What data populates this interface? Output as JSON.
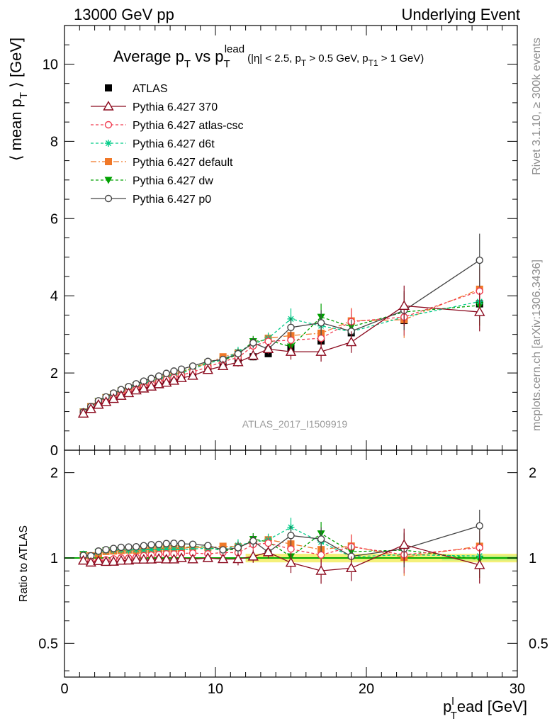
{
  "header": {
    "left": "13000 GeV pp",
    "right": "Underlying Event"
  },
  "side_labels": {
    "rivet": "Rivet 3.1.10, ≥ 300k events",
    "mcplots": "mcplots.cern.ch [arXiv:1306.3436]"
  },
  "watermark": "ATLAS_2017_I1509919",
  "colors": {
    "ATLAS": "#000000",
    "p370": "#8b0a1e",
    "atlascsc": "#f03c50",
    "d6t": "#00cc88",
    "default": "#f07828",
    "dw": "#00a000",
    "p0": "#444444",
    "band": "#f5f07a",
    "band_inner": "#c8f07a",
    "ratio_line": "#00aa00"
  },
  "chart_data": {
    "type": "line",
    "title": {
      "lead": "Average p",
      "sub1": "T",
      "mid": " vs p",
      "sub2": "T",
      "sup2": "lead",
      "cut": "(|η| < 2.5, p",
      "cut_sub1": "T",
      "cut2": " > 0.5 GeV, p",
      "cut_sub2": "T1",
      "cut3": " > 1 GeV)"
    },
    "ylabel": {
      "main": "⟨ mean p",
      "sub": "T",
      "tail": " ⟩ [GeV]"
    },
    "ratio_ylabel": "Ratio to ATLAS",
    "xlabel": {
      "main": "p",
      "sup": "l",
      "sub": "T",
      "tail": "ead [GeV]"
    },
    "xlim": [
      0,
      30
    ],
    "ylim": [
      0,
      11
    ],
    "ratio_ylim": [
      0.38,
      2.4
    ],
    "x_ticks": [
      "0",
      "10",
      "20",
      "30"
    ],
    "y_ticks": [
      "0",
      "2",
      "4",
      "6",
      "8",
      "10"
    ],
    "ratio_ticks": [
      "0.5",
      "1",
      "2"
    ],
    "x": [
      1.25,
      1.75,
      2.25,
      2.75,
      3.25,
      3.75,
      4.25,
      4.75,
      5.25,
      5.75,
      6.25,
      6.75,
      7.25,
      7.75,
      8.5,
      9.5,
      10.5,
      11.5,
      12.5,
      13.5,
      15,
      17,
      19,
      22.5,
      27.5
    ],
    "series": [
      {
        "name": "ATLAS",
        "key": "ATLAS",
        "marker": "square-filled",
        "dash": "none",
        "values": [
          0.97,
          1.11,
          1.21,
          1.29,
          1.37,
          1.44,
          1.51,
          1.57,
          1.62,
          1.67,
          1.72,
          1.77,
          1.82,
          1.87,
          1.95,
          2.08,
          2.2,
          2.3,
          2.42,
          2.5,
          2.65,
          2.83,
          3.04,
          3.36,
          3.79
        ]
      },
      {
        "name": "Pythia 6.427 370",
        "key": "p370",
        "marker": "triangle-open",
        "dash": "none",
        "values": [
          0.95,
          1.07,
          1.18,
          1.25,
          1.33,
          1.41,
          1.48,
          1.55,
          1.6,
          1.65,
          1.71,
          1.75,
          1.8,
          1.87,
          1.93,
          2.08,
          2.18,
          2.28,
          2.45,
          2.62,
          2.55,
          2.55,
          2.8,
          3.74,
          3.58
        ]
      },
      {
        "name": "Pythia 6.427 atlas-csc",
        "key": "atlascsc",
        "marker": "circle-open",
        "dash": "4,3",
        "values": [
          0.98,
          1.08,
          1.18,
          1.27,
          1.36,
          1.44,
          1.51,
          1.58,
          1.65,
          1.71,
          1.77,
          1.83,
          1.88,
          1.94,
          2.03,
          2.15,
          2.3,
          2.4,
          2.7,
          2.82,
          2.85,
          2.9,
          3.33,
          3.45,
          4.12
        ]
      },
      {
        "name": "Pythia 6.427 d6t",
        "key": "d6t",
        "marker": "star",
        "dash": "4,3",
        "values": [
          1.0,
          1.12,
          1.27,
          1.37,
          1.46,
          1.54,
          1.61,
          1.68,
          1.73,
          1.79,
          1.84,
          1.9,
          1.95,
          2.0,
          2.1,
          2.25,
          2.35,
          2.55,
          2.75,
          2.9,
          3.4,
          3.22,
          3.07,
          3.45,
          3.85
        ]
      },
      {
        "name": "Pythia 6.427 default",
        "key": "default",
        "marker": "square-filled",
        "dash": "8,3,2,3",
        "values": [
          0.99,
          1.13,
          1.25,
          1.36,
          1.45,
          1.53,
          1.61,
          1.67,
          1.73,
          1.79,
          1.85,
          1.91,
          1.96,
          2.02,
          2.13,
          2.26,
          2.42,
          2.52,
          2.75,
          2.9,
          2.97,
          3.03,
          3.35,
          3.38,
          4.17
        ]
      },
      {
        "name": "Pythia 6.427 dw",
        "key": "dw",
        "marker": "triangle-down-filled",
        "dash": "4,3",
        "values": [
          1.0,
          1.13,
          1.27,
          1.37,
          1.46,
          1.54,
          1.61,
          1.68,
          1.74,
          1.8,
          1.86,
          1.92,
          1.97,
          2.03,
          2.14,
          2.27,
          2.33,
          2.48,
          2.82,
          2.85,
          2.68,
          3.45,
          3.2,
          3.58,
          3.75
        ]
      },
      {
        "name": "Pythia 6.427 p0",
        "key": "p0",
        "marker": "circle-open",
        "dash": "none",
        "values": [
          0.99,
          1.13,
          1.28,
          1.38,
          1.48,
          1.57,
          1.65,
          1.72,
          1.79,
          1.86,
          1.92,
          1.99,
          2.05,
          2.1,
          2.18,
          2.3,
          2.35,
          2.5,
          2.78,
          2.62,
          3.18,
          3.3,
          3.08,
          3.62,
          4.92
        ]
      }
    ]
  }
}
